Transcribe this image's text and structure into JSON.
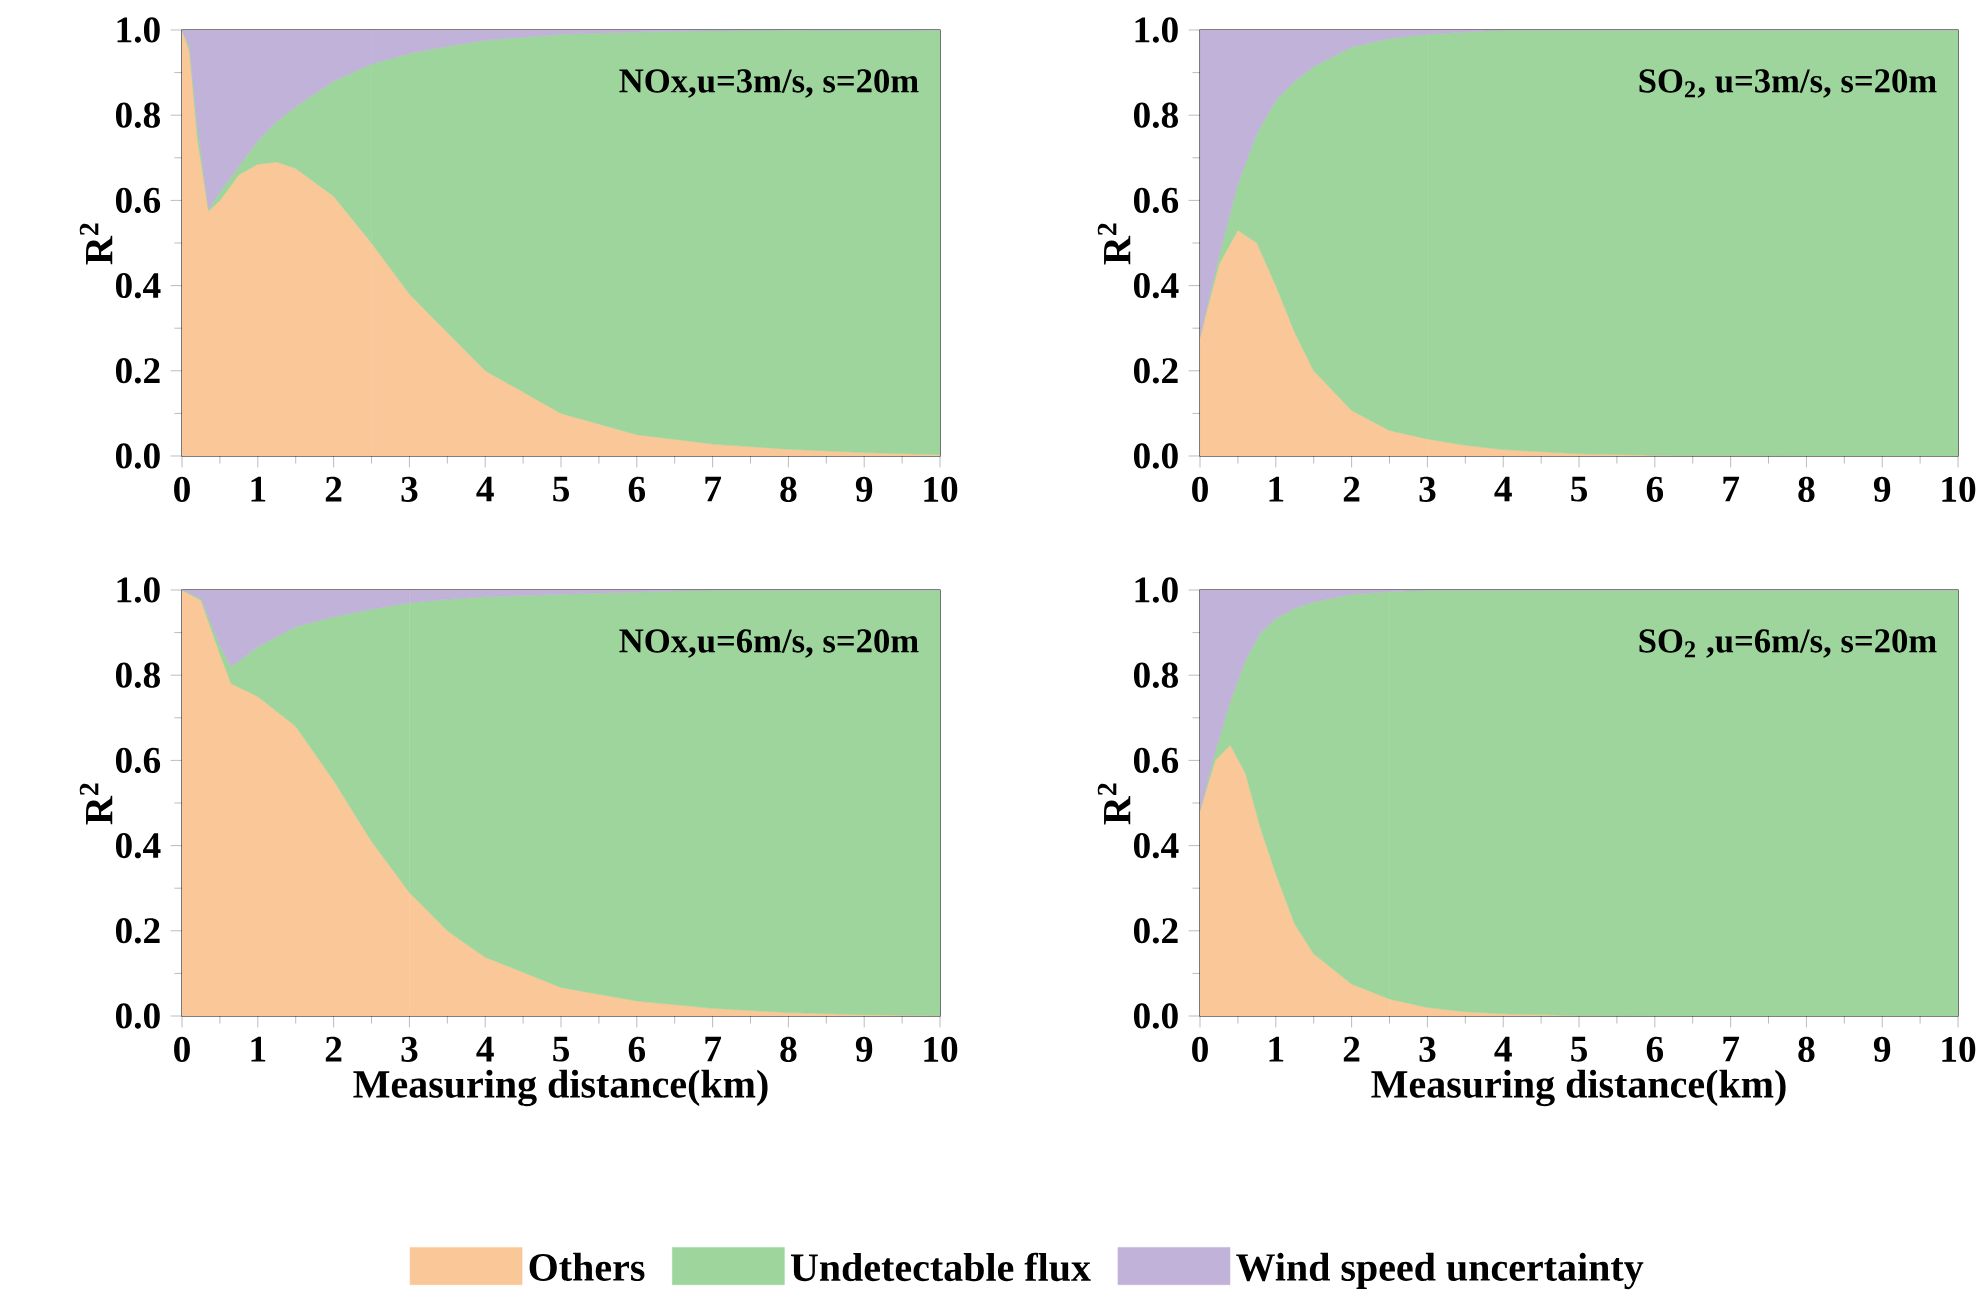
{
  "chart_data": [
    {
      "type": "area",
      "title": "NOx,u=3m/s, s=20m",
      "ylabel": "R$^{2}$",
      "stacked": true,
      "x": [
        0,
        0.1,
        0.2,
        0.35,
        0.5,
        0.75,
        1,
        1.25,
        1.5,
        2,
        2.5,
        3,
        3.5,
        4,
        5,
        6,
        7,
        8,
        9,
        10
      ],
      "series": [
        {
          "color": "#fac898",
          "values": [
            1.0,
            0.95,
            0.75,
            0.575,
            0.6,
            0.66,
            0.685,
            0.69,
            0.675,
            0.61,
            0.5,
            0.38,
            0.29,
            0.2,
            0.1,
            0.05,
            0.028,
            0.016,
            0.008,
            0.003
          ]
        },
        {
          "color": "#9dd59c",
          "values": [
            0,
            0.01,
            0.03,
            0.005,
            0.02,
            0.02,
            0.055,
            0.095,
            0.145,
            0.27,
            0.42,
            0.565,
            0.672,
            0.776,
            0.89,
            0.945,
            0.97,
            0.984,
            0.991,
            0.997
          ]
        },
        {
          "color": "#c0b2d8",
          "values": [
            0,
            0.04,
            0.22,
            0.42,
            0.38,
            0.32,
            0.26,
            0.215,
            0.18,
            0.12,
            0.08,
            0.055,
            0.038,
            0.024,
            0.01,
            0.005,
            0.002,
            0,
            0.001,
            0
          ]
        }
      ],
      "xlim": [
        0,
        10
      ],
      "xticks": [
        0,
        1,
        2,
        3,
        4,
        5,
        6,
        7,
        8,
        9,
        10
      ],
      "ylim": [
        0,
        1
      ],
      "yticks": [
        {
          "value": 0,
          "label": "0.0"
        },
        {
          "value": 0.2,
          "label": "0.2"
        },
        {
          "value": 0.4,
          "label": "0.4"
        },
        {
          "value": 0.6,
          "label": "0.6"
        },
        {
          "value": 0.8,
          "label": "0.8"
        },
        {
          "value": 1,
          "label": "1.0"
        }
      ]
    },
    {
      "type": "area",
      "title": "SO$_{2}$, u=3m/s, s=20m",
      "ylabel": "R$^{2}$",
      "stacked": true,
      "x": [
        0,
        0.25,
        0.5,
        0.75,
        1,
        1.25,
        1.5,
        2,
        2.5,
        3,
        3.5,
        4,
        5,
        6,
        7,
        8,
        9,
        10
      ],
      "series": [
        {
          "color": "#fac898",
          "values": [
            0.28,
            0.45,
            0.53,
            0.5,
            0.4,
            0.29,
            0.2,
            0.107,
            0.06,
            0.04,
            0.025,
            0.015,
            0.005,
            0.002,
            0.001,
            0,
            0,
            0
          ]
        },
        {
          "color": "#9dd59c",
          "values": [
            0,
            0.02,
            0.11,
            0.257,
            0.435,
            0.59,
            0.714,
            0.853,
            0.92,
            0.95,
            0.97,
            0.985,
            0.995,
            0.998,
            0.999,
            1,
            1,
            1
          ]
        },
        {
          "color": "#c0b2d8",
          "values": [
            0.72,
            0.53,
            0.36,
            0.243,
            0.165,
            0.12,
            0.086,
            0.04,
            0.02,
            0.01,
            0.005,
            0,
            0,
            0,
            0,
            0,
            0,
            0
          ]
        }
      ],
      "xlim": [
        0,
        10
      ],
      "xticks": [
        0,
        1,
        2,
        3,
        4,
        5,
        6,
        7,
        8,
        9,
        10
      ],
      "ylim": [
        0,
        1
      ],
      "yticks": [
        {
          "value": 0,
          "label": "0.0"
        },
        {
          "value": 0.2,
          "label": "0.2"
        },
        {
          "value": 0.4,
          "label": "0.4"
        },
        {
          "value": 0.6,
          "label": "0.6"
        },
        {
          "value": 0.8,
          "label": "0.8"
        },
        {
          "value": 1,
          "label": "1.0"
        }
      ]
    },
    {
      "type": "area",
      "title": "NOx,u=6m/s, s=20m",
      "ylabel": "R$^{2}$",
      "xlabel": "Measuring distance(km)",
      "stacked": true,
      "x": [
        0,
        0.25,
        0.5,
        0.65,
        1,
        1.5,
        2,
        2.5,
        3,
        3.5,
        4,
        5,
        6,
        7,
        8,
        9,
        10
      ],
      "series": [
        {
          "color": "#fac898",
          "values": [
            1,
            0.976,
            0.85,
            0.78,
            0.75,
            0.68,
            0.553,
            0.41,
            0.29,
            0.2,
            0.138,
            0.067,
            0.035,
            0.018,
            0.008,
            0.003,
            0.001
          ]
        },
        {
          "color": "#9dd59c",
          "values": [
            0,
            0.004,
            0.02,
            0.04,
            0.117,
            0.234,
            0.384,
            0.545,
            0.68,
            0.778,
            0.846,
            0.923,
            0.96,
            0.982,
            0.992,
            0.997,
            0.999
          ]
        },
        {
          "color": "#c0b2d8",
          "values": [
            0,
            0.02,
            0.13,
            0.18,
            0.133,
            0.086,
            0.063,
            0.045,
            0.03,
            0.022,
            0.016,
            0.01,
            0.005,
            0,
            0,
            0,
            0
          ]
        }
      ],
      "xlim": [
        0,
        10
      ],
      "xticks": [
        0,
        1,
        2,
        3,
        4,
        5,
        6,
        7,
        8,
        9,
        10
      ],
      "ylim": [
        0,
        1
      ],
      "yticks": [
        {
          "value": 0,
          "label": "0.0"
        },
        {
          "value": 0.2,
          "label": "0.2"
        },
        {
          "value": 0.4,
          "label": "0.4"
        },
        {
          "value": 0.6,
          "label": "0.6"
        },
        {
          "value": 0.8,
          "label": "0.8"
        },
        {
          "value": 1,
          "label": "1.0"
        }
      ]
    },
    {
      "type": "area",
      "title": "SO$_{2}$ ,u=6m/s, s=20m",
      "ylabel": "R$^{2}$",
      "xlabel": "Measuring distance(km)",
      "stacked": true,
      "legend": "bottom",
      "x": [
        0,
        0.2,
        0.4,
        0.6,
        0.8,
        1,
        1.25,
        1.5,
        2,
        2.5,
        3,
        3.5,
        4,
        5,
        6,
        7,
        8,
        9,
        10
      ],
      "series": [
        {
          "name": "Others",
          "color": "#fac898",
          "values": [
            0.483,
            0.6,
            0.636,
            0.57,
            0.44,
            0.334,
            0.216,
            0.146,
            0.075,
            0.04,
            0.02,
            0.01,
            0.005,
            0.001,
            0,
            0,
            0,
            0,
            0
          ]
        },
        {
          "name": "Undetectable flux",
          "color": "#9dd59c",
          "values": [
            0,
            0.02,
            0.104,
            0.265,
            0.46,
            0.599,
            0.742,
            0.826,
            0.915,
            0.956,
            0.98,
            0.99,
            0.995,
            0.999,
            1,
            1,
            1,
            1,
            1
          ]
        },
        {
          "name": "Wind speed uncertainty",
          "color": "#c0b2d8",
          "values": [
            0.517,
            0.38,
            0.26,
            0.165,
            0.1,
            0.067,
            0.042,
            0.028,
            0.01,
            0.004,
            0,
            0,
            0,
            0,
            0,
            0,
            0,
            0,
            0
          ]
        }
      ],
      "xlim": [
        0,
        10
      ],
      "xticks": [
        0,
        1,
        2,
        3,
        4,
        5,
        6,
        7,
        8,
        9,
        10
      ],
      "ylim": [
        0,
        1
      ],
      "yticks": [
        {
          "value": 0,
          "label": "0.0"
        },
        {
          "value": 0.2,
          "label": "0.2"
        },
        {
          "value": 0.4,
          "label": "0.4"
        },
        {
          "value": 0.6,
          "label": "0.6"
        },
        {
          "value": 0.8,
          "label": "0.8"
        },
        {
          "value": 1,
          "label": "1.0"
        }
      ]
    }
  ]
}
